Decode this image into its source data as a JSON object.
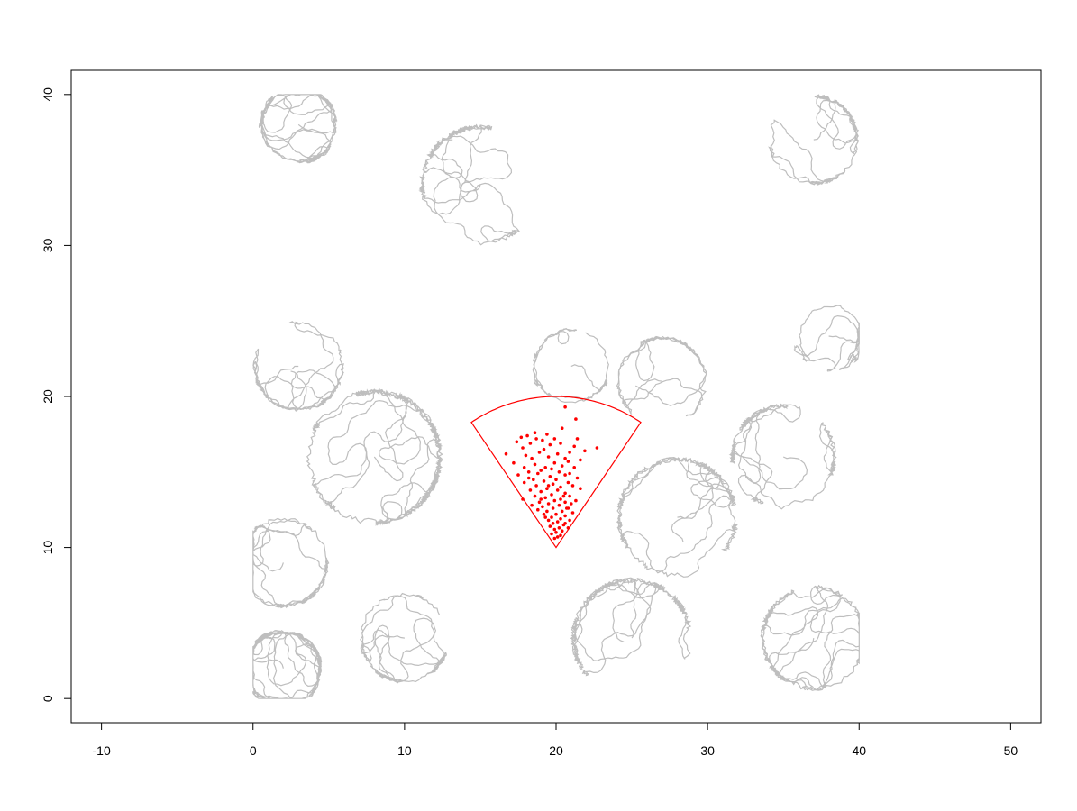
{
  "chart_data": {
    "type": "scatter",
    "title": "",
    "xlabel": "",
    "ylabel": "",
    "xlim": [
      -12,
      52
    ],
    "ylim": [
      -1.6,
      41.6
    ],
    "grid": false,
    "x_ticks": [
      -10,
      0,
      10,
      20,
      30,
      40,
      50
    ],
    "x_tick_labels": [
      "-10",
      "0",
      "10",
      "20",
      "30",
      "40",
      "50"
    ],
    "y_ticks": [
      0,
      10,
      20,
      30,
      40
    ],
    "y_tick_labels": [
      "0",
      "10",
      "20",
      "30",
      "40"
    ],
    "background_trajectories": {
      "description_color": "#bebebe",
      "domain": {
        "x": [
          0,
          40
        ],
        "y": [
          0,
          40
        ]
      },
      "clusters": [
        {
          "cx": 3,
          "cy": 38,
          "n": 700,
          "r": 2.5
        },
        {
          "cx": 2,
          "cy": 2,
          "n": 900,
          "r": 2.5
        },
        {
          "cx": 8,
          "cy": 16,
          "n": 900,
          "r": 4.5
        },
        {
          "cx": 2,
          "cy": 9,
          "n": 600,
          "r": 3
        },
        {
          "cx": 37,
          "cy": 37,
          "n": 500,
          "r": 3
        },
        {
          "cx": 37,
          "cy": 4,
          "n": 700,
          "r": 3.5
        },
        {
          "cx": 25,
          "cy": 4,
          "n": 600,
          "r": 4
        },
        {
          "cx": 28,
          "cy": 12,
          "n": 600,
          "r": 4
        },
        {
          "cx": 35,
          "cy": 16,
          "n": 500,
          "r": 3.5
        },
        {
          "cx": 10,
          "cy": 4,
          "n": 400,
          "r": 3
        },
        {
          "cx": 15,
          "cy": 34,
          "n": 500,
          "r": 4
        },
        {
          "cx": 3,
          "cy": 22,
          "n": 400,
          "r": 3
        },
        {
          "cx": 38,
          "cy": 24,
          "n": 250,
          "r": 2
        },
        {
          "cx": 21,
          "cy": 22,
          "n": 250,
          "r": 2.5
        },
        {
          "cx": 27,
          "cy": 21,
          "n": 350,
          "r": 3
        }
      ]
    },
    "sector": {
      "color": "#ff0000",
      "apex": [
        20,
        10
      ],
      "radius": 10,
      "angle_start_deg": 56,
      "angle_end_deg": 124
    },
    "series": [
      {
        "color": "#ff0000",
        "points": [
          [
            20.6,
            19.3
          ],
          [
            21.3,
            18.5
          ],
          [
            20.4,
            17.9
          ],
          [
            18.6,
            17.6
          ],
          [
            19.4,
            17.5
          ],
          [
            18.1,
            17.4
          ],
          [
            19.9,
            17.2
          ],
          [
            21.4,
            17.2
          ],
          [
            18.7,
            17.2
          ],
          [
            17.7,
            17.3
          ],
          [
            19.1,
            17.1
          ],
          [
            17.4,
            17.0
          ],
          [
            18.3,
            16.9
          ],
          [
            22.7,
            16.6
          ],
          [
            19.6,
            16.8
          ],
          [
            20.3,
            16.9
          ],
          [
            21.9,
            16.4
          ],
          [
            17.8,
            16.6
          ],
          [
            21.2,
            16.7
          ],
          [
            19.2,
            16.5
          ],
          [
            20.9,
            16.3
          ],
          [
            16.7,
            16.2
          ],
          [
            18.9,
            16.3
          ],
          [
            20.1,
            16.2
          ],
          [
            19.5,
            16.0
          ],
          [
            20.6,
            15.9
          ],
          [
            18.4,
            15.9
          ],
          [
            21.6,
            15.8
          ],
          [
            19.9,
            15.6
          ],
          [
            18.6,
            15.5
          ],
          [
            20.4,
            15.4
          ],
          [
            17.9,
            15.3
          ],
          [
            19.3,
            15.3
          ],
          [
            21.2,
            15.3
          ],
          [
            19.0,
            15.1
          ],
          [
            18.2,
            15.0
          ],
          [
            20.2,
            15.0
          ],
          [
            18.8,
            14.9
          ],
          [
            17.5,
            14.8
          ],
          [
            20.6,
            14.8
          ],
          [
            19.6,
            14.7
          ],
          [
            21.4,
            14.6
          ],
          [
            18.5,
            14.5
          ],
          [
            20.0,
            14.5
          ],
          [
            19.2,
            14.4
          ],
          [
            20.8,
            14.3
          ],
          [
            17.9,
            14.3
          ],
          [
            19.8,
            14.2
          ],
          [
            18.7,
            14.1
          ],
          [
            21.1,
            14.1
          ],
          [
            20.3,
            14.0
          ],
          [
            19.4,
            13.9
          ],
          [
            21.6,
            13.9
          ],
          [
            18.3,
            13.8
          ],
          [
            20.1,
            13.8
          ],
          [
            19.0,
            13.7
          ],
          [
            20.6,
            13.6
          ],
          [
            19.7,
            13.5
          ],
          [
            18.6,
            13.4
          ],
          [
            20.9,
            13.4
          ],
          [
            19.3,
            13.3
          ],
          [
            17.8,
            13.2
          ],
          [
            20.3,
            13.2
          ],
          [
            21.3,
            13.1
          ],
          [
            19.9,
            13.1
          ],
          [
            18.9,
            13.0
          ],
          [
            20.6,
            13.0
          ],
          [
            19.5,
            12.9
          ],
          [
            21.0,
            12.9
          ],
          [
            18.4,
            12.8
          ],
          [
            20.2,
            12.8
          ],
          [
            19.1,
            12.7
          ],
          [
            20.8,
            12.6
          ],
          [
            19.8,
            12.6
          ],
          [
            18.8,
            12.5
          ],
          [
            20.4,
            12.4
          ],
          [
            19.4,
            12.4
          ],
          [
            21.1,
            12.3
          ],
          [
            20.0,
            12.2
          ],
          [
            19.2,
            12.2
          ],
          [
            20.6,
            12.1
          ],
          [
            19.7,
            12.0
          ],
          [
            20.3,
            11.9
          ],
          [
            19.5,
            11.8
          ],
          [
            20.9,
            11.8
          ],
          [
            20.1,
            11.7
          ],
          [
            19.8,
            11.6
          ],
          [
            20.5,
            11.5
          ],
          [
            19.6,
            11.4
          ],
          [
            20.2,
            11.3
          ],
          [
            20.8,
            11.3
          ],
          [
            19.9,
            11.2
          ],
          [
            20.4,
            11.1
          ],
          [
            20.0,
            11.0
          ],
          [
            19.7,
            10.9
          ],
          [
            20.3,
            10.8
          ],
          [
            20.1,
            10.7
          ],
          [
            19.9,
            10.6
          ],
          [
            20.6,
            11.6
          ],
          [
            19.3,
            12.0
          ],
          [
            20.7,
            12.6
          ],
          [
            19.0,
            13.2
          ],
          [
            20.5,
            13.4
          ],
          [
            18.2,
            14.6
          ],
          [
            19.7,
            15.2
          ],
          [
            17.2,
            15.6
          ],
          [
            18.0,
            16.1
          ],
          [
            20.8,
            15.7
          ],
          [
            19.5,
            14.1
          ],
          [
            20.9,
            14.9
          ]
        ]
      }
    ]
  }
}
